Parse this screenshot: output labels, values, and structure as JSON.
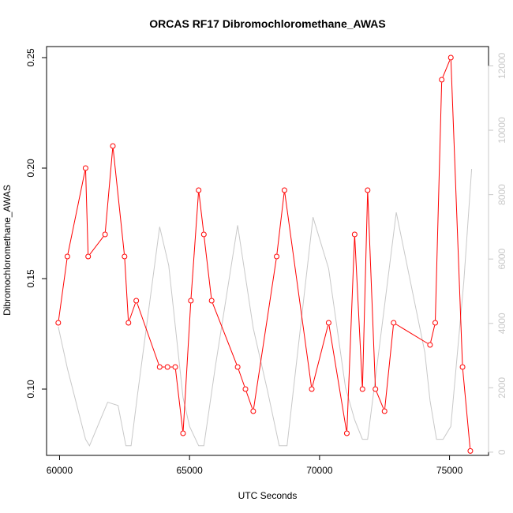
{
  "chart_data": {
    "type": "line",
    "title": "ORCAS RF17 Dibromochloromethane_AWAS",
    "xlabel": "UTC Seconds",
    "ylabel": "Dibromochloromethane_AWAS",
    "xlim": [
      59500,
      76500
    ],
    "ylim": [
      0.07,
      0.255
    ],
    "y2lim": [
      -100,
      12600
    ],
    "x_ticks": [
      60000,
      65000,
      70000,
      75000
    ],
    "y_ticks": [
      0.1,
      0.15,
      0.2,
      0.25
    ],
    "y_tick_labels": [
      "0.10",
      "0.15",
      "0.20",
      "0.25"
    ],
    "y2_ticks": [
      0,
      2000,
      4000,
      6000,
      8000,
      10000,
      12000
    ],
    "colors": {
      "primary": "#ff0000",
      "secondary": "#c8c8c8",
      "axis": "#000000"
    },
    "series": [
      {
        "role": "primary",
        "axis": "left",
        "markers": true,
        "points": [
          [
            59950,
            0.13
          ],
          [
            60300,
            0.16
          ],
          [
            61000,
            0.2
          ],
          [
            61100,
            0.16
          ],
          [
            61750,
            0.17
          ],
          [
            62050,
            0.21
          ],
          [
            62500,
            0.16
          ],
          [
            62650,
            0.13
          ],
          [
            62950,
            0.14
          ],
          [
            63850,
            0.11
          ],
          [
            64150,
            0.11
          ],
          [
            64450,
            0.11
          ],
          [
            64750,
            0.08
          ],
          [
            65050,
            0.14
          ],
          [
            65350,
            0.19
          ],
          [
            65550,
            0.17
          ],
          [
            65850,
            0.14
          ],
          [
            66850,
            0.11
          ],
          [
            67150,
            0.1
          ],
          [
            67450,
            0.09
          ],
          [
            68350,
            0.16
          ],
          [
            68650,
            0.19
          ],
          [
            69700,
            0.1
          ],
          [
            70350,
            0.13
          ],
          [
            71050,
            0.08
          ],
          [
            71350,
            0.17
          ],
          [
            71650,
            0.1
          ],
          [
            71850,
            0.19
          ],
          [
            72150,
            0.1
          ],
          [
            72500,
            0.09
          ],
          [
            72850,
            0.13
          ],
          [
            74250,
            0.12
          ],
          [
            74450,
            0.13
          ],
          [
            74700,
            0.24
          ],
          [
            75050,
            0.25
          ],
          [
            75500,
            0.11
          ],
          [
            75800,
            0.072
          ]
        ]
      },
      {
        "role": "secondary",
        "axis": "right",
        "markers": false,
        "points": [
          [
            59950,
            3900
          ],
          [
            60300,
            2600
          ],
          [
            60650,
            1500
          ],
          [
            61000,
            400
          ],
          [
            61150,
            200
          ],
          [
            61850,
            1550
          ],
          [
            62250,
            1450
          ],
          [
            62550,
            200
          ],
          [
            62750,
            200
          ],
          [
            63000,
            1800
          ],
          [
            63850,
            7000
          ],
          [
            64200,
            5800
          ],
          [
            64750,
            1700
          ],
          [
            65000,
            800
          ],
          [
            65350,
            200
          ],
          [
            65550,
            200
          ],
          [
            66000,
            2700
          ],
          [
            66850,
            7050
          ],
          [
            67450,
            3850
          ],
          [
            68000,
            1900
          ],
          [
            68450,
            200
          ],
          [
            68750,
            200
          ],
          [
            69750,
            7300
          ],
          [
            70350,
            5700
          ],
          [
            71000,
            2000
          ],
          [
            71350,
            1000
          ],
          [
            71650,
            400
          ],
          [
            71850,
            400
          ],
          [
            72150,
            2300
          ],
          [
            72950,
            7450
          ],
          [
            74050,
            3100
          ],
          [
            74250,
            1600
          ],
          [
            74500,
            400
          ],
          [
            74750,
            400
          ],
          [
            75050,
            800
          ],
          [
            75550,
            5300
          ],
          [
            75850,
            8800
          ]
        ]
      }
    ]
  }
}
